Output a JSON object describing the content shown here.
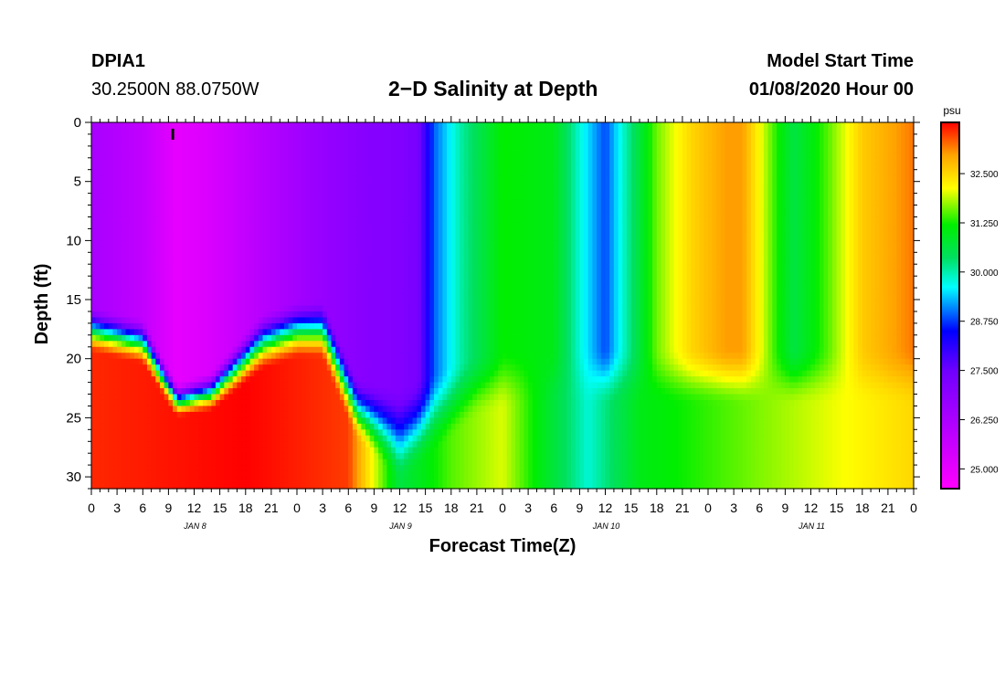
{
  "header": {
    "station_id": "DPIA1",
    "coordinates": "30.2500N 88.0750W",
    "title": "2−D Salinity at Depth",
    "model_start_label": "Model Start Time",
    "model_start_time": "01/08/2020 Hour 00"
  },
  "chart_data": {
    "type": "heatmap",
    "title": "2−D Salinity at Depth",
    "xlabel": "Forecast Time(Z)",
    "ylabel": "Depth (ft)",
    "x_range_hours": [
      0,
      96
    ],
    "ylim": [
      0,
      31
    ],
    "y_ticks": [
      0,
      5,
      10,
      15,
      20,
      25,
      30
    ],
    "x_tick_labels": [
      "0",
      "3",
      "6",
      "9",
      "12",
      "15",
      "18",
      "21",
      "0",
      "3",
      "6",
      "9",
      "12",
      "15",
      "18",
      "21",
      "0",
      "3",
      "6",
      "9",
      "12",
      "15",
      "18",
      "21",
      "0",
      "3",
      "6",
      "9",
      "12",
      "15",
      "18",
      "21",
      "0"
    ],
    "day_labels": [
      {
        "hour": 12,
        "label": "JAN 8"
      },
      {
        "hour": 36,
        "label": "JAN 9"
      },
      {
        "hour": 60,
        "label": "JAN 10"
      },
      {
        "hour": 84,
        "label": "JAN 11"
      }
    ],
    "colorbar": {
      "unit": "psu",
      "min": 24.5,
      "max": 33.8,
      "tick_values": [
        25.0,
        26.25,
        27.5,
        28.75,
        30.0,
        31.25,
        32.5
      ],
      "tick_labels": [
        "25.000",
        "26.250",
        "27.500",
        "28.750",
        "30.000",
        "31.250",
        "32.500"
      ]
    },
    "marker": {
      "hour": 9.5,
      "depth_ft": 1.0,
      "label": "I"
    },
    "surface_salinity_psu": [
      {
        "hour": 0,
        "value": 26.3
      },
      {
        "hour": 6,
        "value": 25.8
      },
      {
        "hour": 10,
        "value": 25.0
      },
      {
        "hour": 14,
        "value": 25.3
      },
      {
        "hour": 20,
        "value": 26.0
      },
      {
        "hour": 26,
        "value": 26.6
      },
      {
        "hour": 32,
        "value": 27.0
      },
      {
        "hour": 36,
        "value": 27.1
      },
      {
        "hour": 38,
        "value": 27.3
      },
      {
        "hour": 39,
        "value": 28.0
      },
      {
        "hour": 40,
        "value": 28.9
      },
      {
        "hour": 43,
        "value": 30.0
      },
      {
        "hour": 48,
        "value": 31.2
      },
      {
        "hour": 54,
        "value": 31.0
      },
      {
        "hour": 57,
        "value": 29.8
      },
      {
        "hour": 60,
        "value": 28.8
      },
      {
        "hour": 62,
        "value": 29.8
      },
      {
        "hour": 66,
        "value": 31.6
      },
      {
        "hour": 70,
        "value": 32.5
      },
      {
        "hour": 74,
        "value": 33.0
      },
      {
        "hour": 76,
        "value": 33.0
      },
      {
        "hour": 80,
        "value": 31.3
      },
      {
        "hour": 82,
        "value": 30.6
      },
      {
        "hour": 86,
        "value": 31.5
      },
      {
        "hour": 90,
        "value": 32.6
      },
      {
        "hour": 96,
        "value": 33.2
      }
    ],
    "halocline": [
      {
        "hour": 0,
        "top_ft": 15.5,
        "bottom_ft": 19.5
      },
      {
        "hour": 6,
        "top_ft": 16.5,
        "bottom_ft": 20.5
      },
      {
        "hour": 10,
        "top_ft": 22.0,
        "bottom_ft": 25.0
      },
      {
        "hour": 14,
        "top_ft": 21.0,
        "bottom_ft": 24.5
      },
      {
        "hour": 20,
        "top_ft": 16.0,
        "bottom_ft": 21.0
      },
      {
        "hour": 24,
        "top_ft": 15.0,
        "bottom_ft": 20.0
      },
      {
        "hour": 27,
        "top_ft": 15.0,
        "bottom_ft": 20.0
      },
      {
        "hour": 31,
        "top_ft": 21.5,
        "bottom_ft": 27.0
      },
      {
        "hour": 36,
        "top_ft": 22.5,
        "bottom_ft": 30.5
      },
      {
        "hour": 40,
        "top_ft": 21.0,
        "bottom_ft": 28.0
      },
      {
        "hour": 45,
        "top_ft": 19.5,
        "bottom_ft": 25.0
      },
      {
        "hour": 50,
        "top_ft": 19.0,
        "bottom_ft": 24.0
      },
      {
        "hour": 96,
        "top_ft": 19.0,
        "bottom_ft": 24.0
      }
    ],
    "bottom_salinity_psu": [
      {
        "hour": 0,
        "value": 33.6
      },
      {
        "hour": 18,
        "value": 33.8
      },
      {
        "hour": 30,
        "value": 33.5
      },
      {
        "hour": 36,
        "value": 30.6
      },
      {
        "hour": 42,
        "value": 31.5
      },
      {
        "hour": 48,
        "value": 32.0
      },
      {
        "hour": 58,
        "value": 29.8
      },
      {
        "hour": 64,
        "value": 31.0
      },
      {
        "hour": 96,
        "value": 32.5
      }
    ]
  }
}
